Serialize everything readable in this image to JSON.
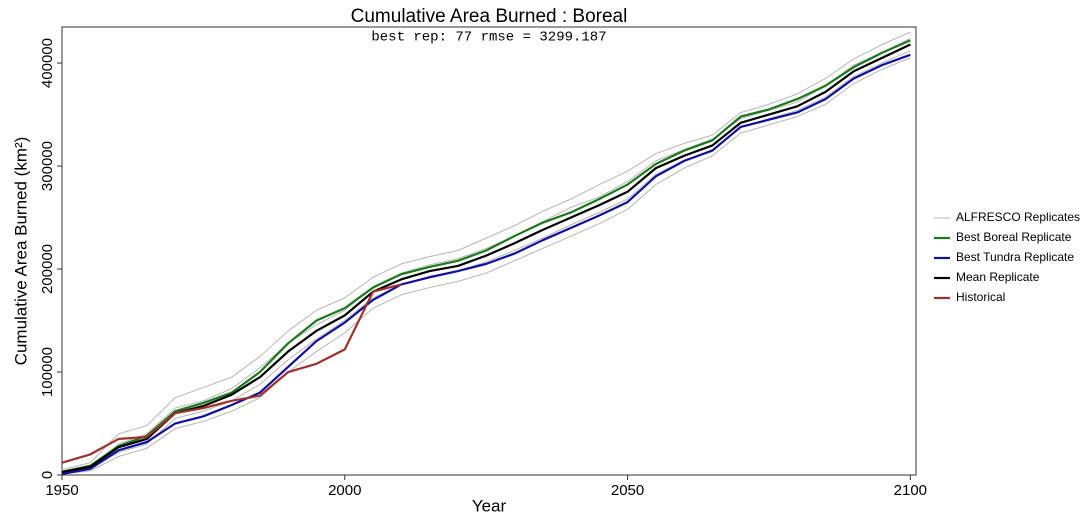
{
  "chart_data": {
    "type": "line",
    "title": "Cumulative Area Burned : Boreal",
    "subtitle": "best rep: 77 rmse = 3299.187",
    "x_label": "Year",
    "y_label": "Cumulative Area Burned (km²)",
    "x": [
      1950,
      1955,
      1960,
      1965,
      1970,
      1975,
      1980,
      1985,
      1990,
      1995,
      2000,
      2005,
      2010,
      2015,
      2020,
      2025,
      2030,
      2035,
      2040,
      2045,
      2050,
      2055,
      2060,
      2065,
      2070,
      2075,
      2080,
      2085,
      2090,
      2095,
      2100
    ],
    "xlim": [
      1950,
      2101
    ],
    "xticks": [
      1950,
      2000,
      2050,
      2100
    ],
    "ylim": [
      0,
      435000
    ],
    "yticks": [
      0,
      100000,
      200000,
      300000,
      400000
    ],
    "series": [
      {
        "name": "ALFRESCO Replicates",
        "color": "#b5b5b5",
        "values": [
          [
            5000,
            12000,
            40000,
            48000,
            75000,
            85000,
            95000,
            115000,
            140000,
            160000,
            172000,
            192000,
            205000,
            212000,
            218000,
            230000,
            242000,
            256000,
            268000,
            282000,
            295000,
            312000,
            322000,
            330000,
            352000,
            360000,
            370000,
            385000,
            404000,
            418000,
            430000
          ],
          [
            1000,
            4000,
            18000,
            26000,
            45000,
            52000,
            62000,
            75000,
            100000,
            120000,
            138000,
            162000,
            175000,
            182000,
            188000,
            196000,
            208000,
            220000,
            232000,
            244000,
            258000,
            282000,
            298000,
            310000,
            332000,
            340000,
            348000,
            360000,
            380000,
            394000,
            405000
          ],
          [
            2000,
            7000,
            30000,
            40000,
            65000,
            72000,
            84000,
            104000,
            128000,
            146000,
            160000,
            183000,
            196000,
            204000,
            210000,
            220000,
            232000,
            246000,
            260000,
            270000,
            285000,
            305000,
            316000,
            326000,
            346000,
            354000,
            362000,
            378000,
            398000,
            410000,
            424000
          ],
          [
            2000,
            6000,
            22000,
            30000,
            55000,
            62000,
            72000,
            88000,
            112000,
            132000,
            150000,
            172000,
            185000,
            193000,
            198000,
            207000,
            218000,
            230000,
            243000,
            255000,
            268000,
            292000,
            305000,
            316000,
            338000,
            346000,
            354000,
            367000,
            387000,
            400000,
            412000
          ]
        ]
      },
      {
        "name": "Best Boreal Replicate",
        "color": "#1a7a1a",
        "values": [
          3000,
          9000,
          28000,
          38000,
          62000,
          70000,
          80000,
          100000,
          128000,
          150000,
          162000,
          182000,
          195000,
          202000,
          208000,
          218000,
          232000,
          245000,
          255000,
          268000,
          282000,
          302000,
          315000,
          325000,
          348000,
          355000,
          365000,
          378000,
          396000,
          410000,
          422000
        ]
      },
      {
        "name": "Best Tundra Replicate",
        "color": "#1010a0",
        "values": [
          1000,
          6000,
          24000,
          32000,
          50000,
          57000,
          68000,
          80000,
          105000,
          130000,
          148000,
          170000,
          185000,
          192000,
          198000,
          205000,
          215000,
          228000,
          240000,
          252000,
          265000,
          290000,
          305000,
          315000,
          338000,
          345000,
          352000,
          365000,
          385000,
          398000,
          408000
        ]
      },
      {
        "name": "Mean Replicate",
        "color": "#000000",
        "values": [
          3000,
          8000,
          27000,
          35000,
          60000,
          67000,
          78000,
          95000,
          120000,
          140000,
          155000,
          178000,
          190000,
          198000,
          203000,
          213000,
          225000,
          238000,
          250000,
          262000,
          275000,
          298000,
          310000,
          320000,
          342000,
          350000,
          358000,
          372000,
          392000,
          405000,
          418000
        ]
      },
      {
        "name": "Historical",
        "color": "#a0302a",
        "values": [
          12000,
          20000,
          35000,
          37000,
          60000,
          65000,
          72000,
          77000,
          100000,
          108000,
          122000,
          178000,
          185000,
          null,
          null,
          null,
          null,
          null,
          null,
          null,
          null,
          null,
          null,
          null,
          null,
          null,
          null,
          null,
          null,
          null,
          null
        ]
      }
    ]
  }
}
